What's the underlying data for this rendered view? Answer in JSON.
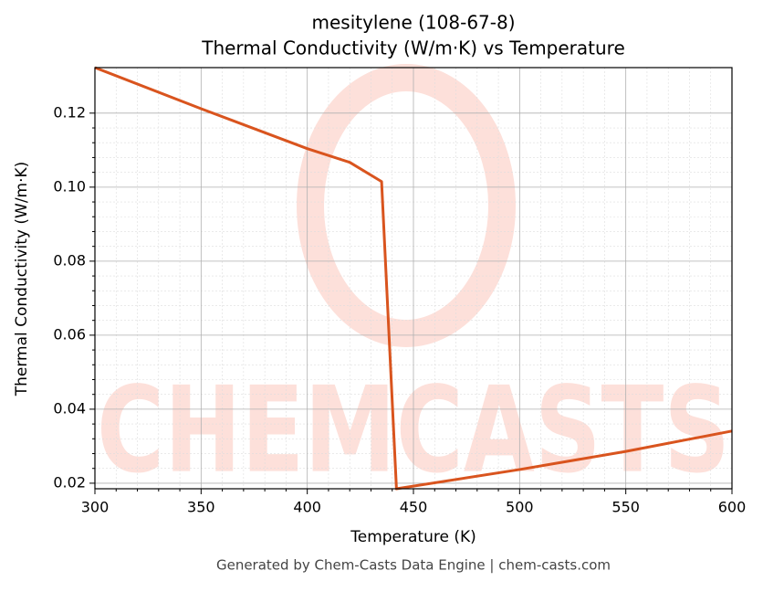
{
  "chart_data": {
    "type": "line",
    "title": "mesitylene (108-67-8)",
    "subtitle": "Thermal Conductivity (W/m·K) vs Temperature",
    "x_label": "Temperature (K)",
    "y_label": "Thermal Conductivity (W/m·K)",
    "x": [
      300,
      350,
      400,
      420,
      435,
      442,
      500,
      550,
      600
    ],
    "series": [
      {
        "name": "Thermal Conductivity",
        "color": "#d9541e",
        "values": [
          0.1323,
          0.1212,
          0.1104,
          0.1067,
          0.1015,
          0.0185,
          0.0237,
          0.0286,
          0.0341
        ]
      }
    ],
    "xlim": [
      300,
      600
    ],
    "xticks": [
      300,
      350,
      400,
      450,
      500,
      550,
      600
    ],
    "ylim": [
      0.0185,
      0.1323
    ],
    "yticks": [
      0.02,
      0.04,
      0.06,
      0.08,
      {
        "value": 0.1,
        "label": "0.10"
      },
      0.12
    ],
    "grid": true,
    "watermark": "CHEMCASTS",
    "footer": "Generated by Chem-Casts Data Engine | chem-casts.com"
  }
}
